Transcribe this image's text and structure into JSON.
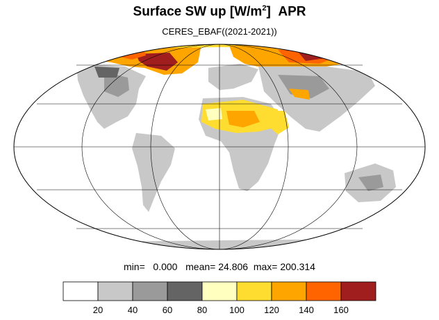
{
  "title": {
    "main": "Surface SW up [W/m",
    "superscript": "2",
    "close": "]",
    "month": "APR"
  },
  "subtitle": "CERES_EBAF((2021-2021))",
  "stats": {
    "min_label": "min=",
    "min_value": "0.000",
    "mean_label": "mean=",
    "mean_value": "24.806",
    "max_label": "max=",
    "max_value": "200.314"
  },
  "projection": "mollweide",
  "colorbar": {
    "levels": [
      "20",
      "40",
      "60",
      "80",
      "100",
      "120",
      "140",
      "160"
    ],
    "colors": [
      "#ffffff",
      "#c8c8c8",
      "#9a9a9a",
      "#646464",
      "#ffffc0",
      "#ffdc30",
      "#ffa500",
      "#ff6400",
      "#a01e1e"
    ]
  },
  "colors": {
    "land_light": "#c8c8c8",
    "land_mid": "#9a9a9a",
    "land_dark": "#646464",
    "desert_light": "#ffffc0",
    "desert": "#ffdc30",
    "ice_orange": "#ffa500",
    "ice_red": "#ff6400",
    "ice_dark": "#a01e1e"
  }
}
